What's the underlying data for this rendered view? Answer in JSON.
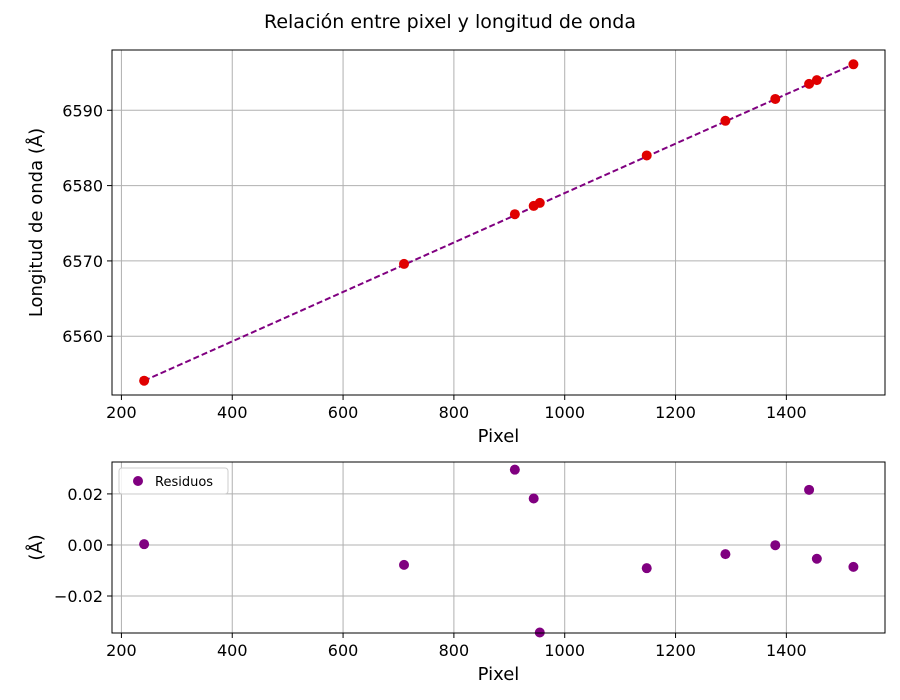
{
  "figure_title": "Relación entre pixel y longitud de onda",
  "colors": {
    "fit_line": "#800080",
    "points": "#e00000",
    "residuals": "#800080",
    "grid": "#b0b0b0"
  },
  "chart_data": [
    {
      "type": "scatter",
      "title": "",
      "xlabel": "Pixel",
      "ylabel": "Longitud de onda (Å)",
      "xlim": [
        183,
        1578
      ],
      "ylim": [
        6552.2,
        6598.0
      ],
      "xticks": [
        200,
        400,
        600,
        800,
        1000,
        1200,
        1400
      ],
      "yticks": [
        6560,
        6570,
        6580,
        6590
      ],
      "grid": true,
      "series": [
        {
          "kind": "points",
          "x": [
            241,
            710,
            910,
            944,
            955,
            1148,
            1290,
            1380,
            1441,
            1455,
            1521
          ],
          "y": [
            6554.1,
            6569.6,
            6576.2,
            6577.3,
            6577.7,
            6584.0,
            6588.6,
            6591.5,
            6593.5,
            6594.0,
            6596.1
          ]
        },
        {
          "kind": "fit",
          "style": "dashed",
          "x": [
            241,
            1521
          ],
          "y": [
            6554.1,
            6596.1
          ]
        }
      ]
    },
    {
      "type": "scatter",
      "title": "",
      "xlabel": "Pixel",
      "ylabel": "(Å)",
      "xlim": [
        183,
        1578
      ],
      "ylim": [
        -0.0345,
        0.0325
      ],
      "xticks": [
        200,
        400,
        600,
        800,
        1000,
        1200,
        1400
      ],
      "yticks": [
        -0.02,
        0.0,
        0.02
      ],
      "ytick_labels": [
        "−0.02",
        "0.00",
        "0.02"
      ],
      "grid": true,
      "legend": "top-left",
      "series": [
        {
          "name": "Residuos",
          "x": [
            241,
            710,
            910,
            944,
            955,
            1148,
            1290,
            1380,
            1441,
            1455,
            1521
          ],
          "y": [
            0.0003,
            -0.0078,
            0.0295,
            0.0182,
            -0.0343,
            -0.0091,
            -0.0036,
            -0.0001,
            0.0216,
            -0.0054,
            -0.0086
          ]
        }
      ]
    }
  ]
}
